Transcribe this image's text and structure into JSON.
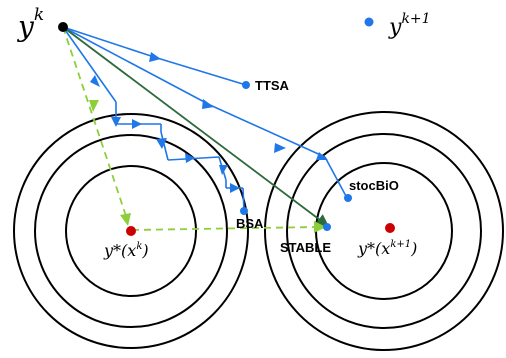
{
  "labels": {
    "y_k": "y",
    "y_k_sup": "k",
    "legend_y": "y",
    "legend_sup": "k+1",
    "ystar_left": "y*(x",
    "ystar_left_sup": "k",
    "ystar_left_close": ")",
    "ystar_right": "y*(x",
    "ystar_right_sup": "k+1",
    "ystar_right_close": ")",
    "ttsa": "TTSA",
    "stocbio": "stocBiO",
    "bsa": "BSA",
    "stable": "STABLE"
  },
  "colors": {
    "blue": "#1f77e8",
    "dark_green": "#2e6b3c",
    "light_green": "#8ccf3a",
    "red": "#cc0000",
    "black": "#000000"
  }
}
